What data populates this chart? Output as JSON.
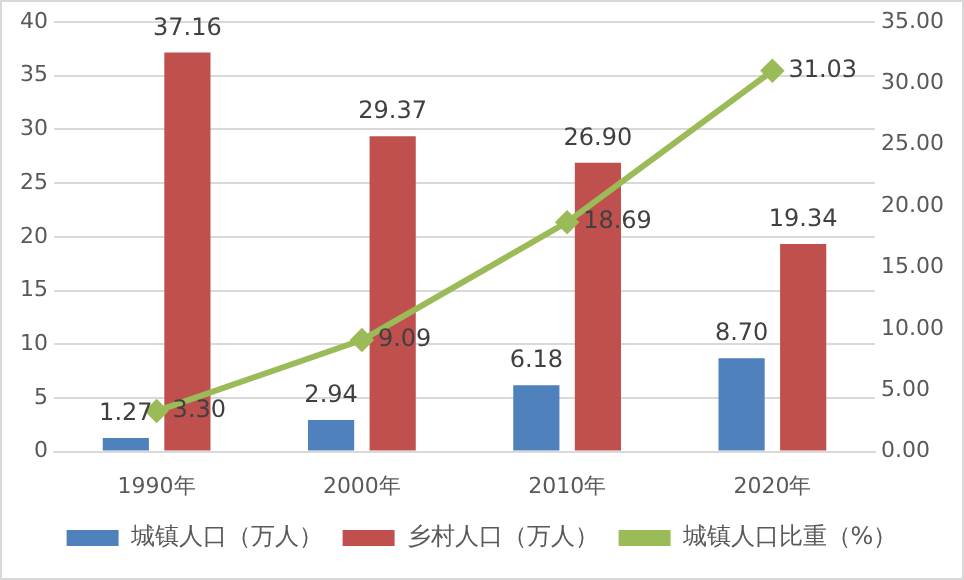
{
  "chart_data": {
    "type": "bar",
    "categories": [
      "1990年",
      "2000年",
      "2010年",
      "2020年"
    ],
    "series": [
      {
        "name": "城镇人口（万人）",
        "color": "#4f81bd",
        "values": [
          1.27,
          2.94,
          6.18,
          8.7
        ],
        "value_labels": [
          "1.27",
          "2.94",
          "6.18",
          "8.70"
        ]
      },
      {
        "name": "乡村人口（万人）",
        "color": "#c0504d",
        "values": [
          37.16,
          29.37,
          26.9,
          19.34
        ],
        "value_labels": [
          "37.16",
          "29.37",
          "26.90",
          "19.34"
        ]
      },
      {
        "name": "城镇人口比重（%）",
        "type": "line",
        "axis": "y2",
        "color": "#9bbb59",
        "marker": "diamond",
        "values": [
          3.3,
          9.09,
          18.69,
          31.03
        ],
        "value_labels": [
          "3.30",
          "9.09",
          "18.69",
          "31.03"
        ]
      }
    ],
    "ylim": [
      0,
      40
    ],
    "yticks": [
      0,
      5,
      10,
      15,
      20,
      25,
      30,
      35,
      40
    ],
    "y2lim": [
      0,
      35
    ],
    "y2ticks": [
      {
        "value": 0,
        "label": "0.00"
      },
      {
        "value": 5,
        "label": "5.00"
      },
      {
        "value": 10,
        "label": "10.00"
      },
      {
        "value": 15,
        "label": "15.00"
      },
      {
        "value": 20,
        "label": "20.00"
      },
      {
        "value": 25,
        "label": "25.00"
      },
      {
        "value": 30,
        "label": "30.00"
      },
      {
        "value": 35,
        "label": "35.00"
      }
    ],
    "grid": "y",
    "legend": "bottom"
  }
}
